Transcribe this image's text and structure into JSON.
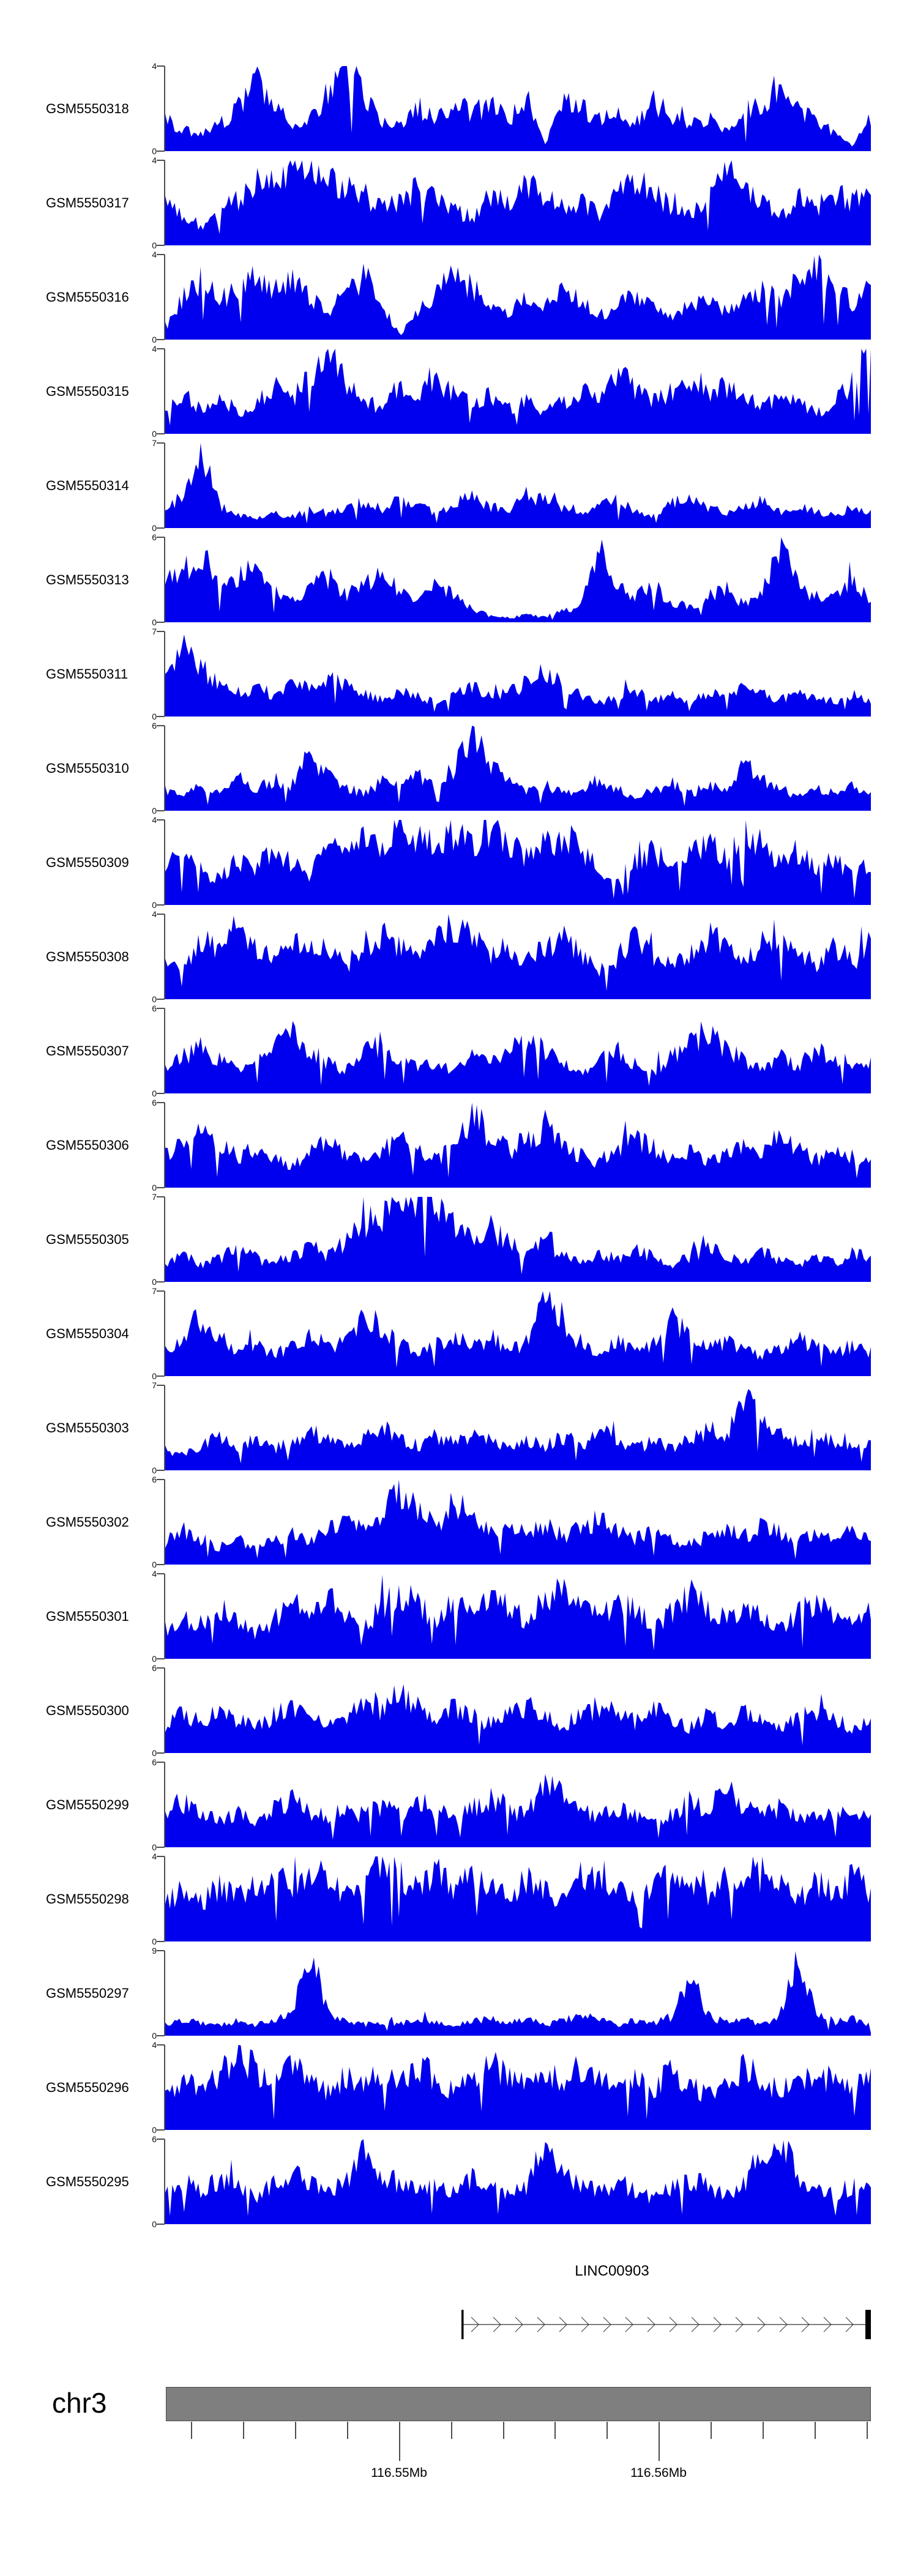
{
  "chart_data": {
    "type": "area",
    "title": "",
    "description": "Genome browser coverage signal tracks over a chr3 region with LINC00903 gene model and genomic coordinate axis",
    "colors": {
      "signal": "#0000EE",
      "ideogram_fill": "#7f7f7f",
      "ideogram_border": "#4a4a4a",
      "axis": "#4d4d4d"
    },
    "y_axis_zero_label": "0",
    "region": {
      "chromosome": "chr3"
    },
    "gene": {
      "label": "LINC00903",
      "strand": "forward"
    },
    "axis": {
      "major_tick_labels": [
        "116.55Mb",
        "116.56Mb"
      ],
      "major_tick_values_mb": [
        116.55,
        116.56
      ],
      "minor_tick_interval_mb": 0.002,
      "legend_position": "none",
      "grid": false
    },
    "tracks": [
      {
        "name": "GSM5550318",
        "ymax": 4,
        "values": [
          1.5,
          1.0,
          0.8,
          1.3,
          2.0,
          3.7,
          2.2,
          1.2,
          1.6,
          2.8,
          4.0,
          2.6,
          1.4,
          1.1,
          2.1,
          1.5,
          2.4,
          1.8,
          2.2,
          1.4,
          2.6,
          0.3,
          2.4,
          2.0,
          1.5,
          1.9,
          1.3,
          2.3,
          1.7,
          1.2,
          1.5,
          1.1,
          1.8,
          2.3,
          3.2,
          2.1,
          1.4,
          0.9,
          0.2,
          1.6
        ]
      },
      {
        "name": "GSM5550317",
        "ymax": 4,
        "values": [
          2.0,
          1.4,
          0.9,
          1.5,
          2.2,
          2.9,
          3.2,
          3.5,
          4.0,
          3.4,
          2.8,
          2.4,
          1.7,
          2.1,
          2.9,
          2.2,
          1.6,
          1.3,
          2.4,
          2.0,
          2.8,
          2.3,
          1.7,
          2.1,
          1.5,
          2.6,
          3.3,
          2.4,
          1.8,
          1.4,
          2.0,
          3.5,
          2.6,
          1.9,
          1.5,
          2.2,
          1.8,
          2.5,
          2.1,
          2.8
        ]
      },
      {
        "name": "GSM5550316",
        "ymax": 4,
        "values": [
          0.5,
          2.0,
          2.8,
          1.8,
          2.4,
          3.1,
          2.2,
          2.8,
          2.0,
          1.2,
          2.4,
          3.0,
          1.6,
          0.2,
          1.4,
          2.2,
          3.0,
          2.4,
          1.6,
          1.2,
          2.0,
          1.5,
          2.3,
          1.8,
          1.2,
          1.6,
          2.1,
          1.4,
          1.0,
          1.6,
          2.2,
          1.3,
          1.8,
          2.4,
          2.0,
          2.8,
          3.4,
          2.4,
          1.7,
          2.6
        ]
      },
      {
        "name": "GSM5550315",
        "ymax": 4,
        "values": [
          1.2,
          2.0,
          1.1,
          1.6,
          1.0,
          1.4,
          2.2,
          1.6,
          2.8,
          4.0,
          2.4,
          1.6,
          1.2,
          2.3,
          1.8,
          2.5,
          2.0,
          1.4,
          1.8,
          1.2,
          1.6,
          1.0,
          1.5,
          2.1,
          1.6,
          2.8,
          2.2,
          1.6,
          2.0,
          2.4,
          1.8,
          2.2,
          1.6,
          1.2,
          1.8,
          1.4,
          1.0,
          1.5,
          2.4,
          4.0
        ]
      },
      {
        "name": "GSM5550314",
        "ymax": 7,
        "values": [
          1.8,
          2.5,
          6.8,
          2.0,
          1.0,
          0.8,
          1.2,
          1.0,
          1.5,
          1.2,
          1.8,
          2.2,
          1.6,
          2.4,
          1.8,
          1.2,
          2.0,
          2.6,
          1.8,
          1.4,
          2.8,
          2.2,
          1.6,
          1.2,
          1.8,
          2.4,
          1.4,
          1.0,
          2.0,
          2.6,
          1.8,
          1.2,
          1.6,
          2.2,
          1.4,
          1.9,
          1.3,
          1.0,
          1.8,
          1.2
        ]
      },
      {
        "name": "GSM5550313",
        "ymax": 6,
        "values": [
          2.8,
          3.5,
          5.0,
          2.4,
          3.0,
          4.2,
          2.2,
          1.6,
          2.4,
          3.2,
          2.0,
          2.8,
          3.4,
          2.2,
          1.4,
          2.6,
          1.8,
          1.0,
          0.4,
          0.3,
          0.5,
          0.4,
          0.8,
          1.2,
          5.5,
          3.0,
          1.8,
          2.6,
          1.5,
          1.0,
          1.8,
          2.4,
          1.2,
          2.0,
          5.8,
          2.6,
          1.4,
          2.2,
          3.0,
          1.6
        ]
      },
      {
        "name": "GSM5550311",
        "ymax": 7,
        "values": [
          3.0,
          6.8,
          4.0,
          2.6,
          2.0,
          2.4,
          1.8,
          2.8,
          2.2,
          3.2,
          2.6,
          1.8,
          1.4,
          2.0,
          1.6,
          1.2,
          1.8,
          2.4,
          1.6,
          2.0,
          2.8,
          4.0,
          2.4,
          1.8,
          1.2,
          1.6,
          2.2,
          1.4,
          1.8,
          1.2,
          2.0,
          1.6,
          2.4,
          1.8,
          1.4,
          2.0,
          1.6,
          1.2,
          1.8,
          1.4
        ]
      },
      {
        "name": "GSM5550310",
        "ymax": 6,
        "values": [
          1.5,
          1.0,
          1.8,
          1.2,
          2.0,
          1.4,
          2.2,
          1.8,
          4.0,
          2.4,
          1.6,
          1.2,
          2.0,
          1.6,
          2.4,
          1.8,
          3.0,
          5.8,
          3.2,
          2.0,
          1.4,
          1.8,
          1.2,
          1.6,
          2.2,
          1.6,
          1.0,
          1.4,
          2.0,
          1.2,
          1.8,
          1.4,
          3.5,
          2.2,
          1.6,
          1.0,
          1.6,
          1.2,
          1.8,
          1.4
        ]
      },
      {
        "name": "GSM5550309",
        "ymax": 4,
        "values": [
          1.8,
          2.4,
          1.6,
          1.2,
          2.2,
          1.8,
          2.6,
          2.0,
          1.4,
          2.8,
          2.2,
          3.0,
          2.4,
          3.8,
          3.2,
          2.6,
          3.4,
          2.8,
          3.8,
          3.0,
          2.2,
          2.8,
          3.4,
          2.4,
          1.8,
          1.2,
          2.0,
          2.6,
          1.8,
          2.4,
          3.0,
          2.2,
          3.6,
          2.8,
          2.0,
          2.6,
          1.8,
          2.2,
          1.4,
          2.0
        ]
      },
      {
        "name": "GSM5550308",
        "ymax": 4,
        "values": [
          2.2,
          1.6,
          2.8,
          2.2,
          3.4,
          2.6,
          1.8,
          2.4,
          3.0,
          2.2,
          1.6,
          2.6,
          3.2,
          2.4,
          1.8,
          2.8,
          3.6,
          2.8,
          2.0,
          2.6,
          1.8,
          2.4,
          3.0,
          2.2,
          1.4,
          2.0,
          2.8,
          2.0,
          1.6,
          2.2,
          3.0,
          2.4,
          1.8,
          2.6,
          3.2,
          2.2,
          1.6,
          2.4,
          1.8,
          2.6
        ]
      },
      {
        "name": "GSM5550307",
        "ymax": 6,
        "values": [
          1.8,
          2.6,
          3.4,
          2.4,
          1.6,
          2.2,
          3.0,
          4.4,
          3.2,
          2.2,
          1.6,
          2.8,
          3.6,
          2.6,
          1.8,
          2.4,
          1.6,
          2.8,
          2.0,
          3.2,
          4.2,
          3.0,
          2.0,
          1.4,
          2.2,
          3.0,
          2.2,
          1.6,
          2.6,
          3.4,
          4.6,
          3.2,
          2.4,
          1.8,
          2.6,
          2.0,
          3.0,
          2.2,
          1.6,
          2.4
        ]
      },
      {
        "name": "GSM5550306",
        "ymax": 6,
        "values": [
          2.4,
          3.2,
          4.0,
          3.0,
          2.2,
          2.8,
          2.0,
          1.6,
          2.4,
          3.2,
          2.4,
          1.8,
          2.6,
          3.4,
          2.6,
          2.0,
          3.0,
          5.2,
          3.6,
          2.6,
          3.4,
          4.4,
          3.2,
          2.2,
          1.8,
          2.8,
          3.6,
          2.8,
          2.0,
          2.6,
          1.8,
          2.4,
          3.2,
          2.4,
          3.8,
          2.8,
          2.0,
          2.8,
          2.2,
          1.6
        ]
      },
      {
        "name": "GSM5550305",
        "ymax": 7,
        "values": [
          1.6,
          2.2,
          1.4,
          2.0,
          2.8,
          2.0,
          1.4,
          2.2,
          3.0,
          2.2,
          3.4,
          4.6,
          5.6,
          6.5,
          5.8,
          6.2,
          4.8,
          3.6,
          4.4,
          3.2,
          2.4,
          3.2,
          2.2,
          1.6,
          2.4,
          1.8,
          2.8,
          2.0,
          1.4,
          2.0,
          2.8,
          2.0,
          1.6,
          2.4,
          1.8,
          1.2,
          2.0,
          1.6,
          2.4,
          1.8
        ]
      },
      {
        "name": "GSM5550304",
        "ymax": 7,
        "values": [
          2.0,
          3.2,
          5.0,
          3.0,
          2.0,
          2.6,
          1.8,
          2.4,
          3.4,
          2.4,
          3.0,
          5.5,
          3.8,
          2.6,
          1.8,
          2.6,
          3.4,
          2.4,
          3.2,
          2.2,
          2.8,
          6.5,
          4.0,
          2.8,
          2.0,
          2.8,
          2.0,
          2.8,
          5.0,
          3.2,
          2.2,
          3.0,
          2.2,
          1.6,
          2.4,
          3.2,
          2.4,
          1.8,
          2.6,
          2.0
        ]
      },
      {
        "name": "GSM5550303",
        "ymax": 7,
        "values": [
          1.8,
          1.2,
          2.0,
          2.8,
          2.0,
          2.6,
          1.8,
          2.4,
          3.2,
          2.4,
          1.8,
          2.6,
          3.4,
          2.6,
          2.0,
          2.8,
          2.2,
          3.0,
          2.4,
          1.8,
          2.6,
          2.0,
          2.8,
          2.2,
          3.0,
          2.4,
          1.8,
          2.4,
          1.8,
          2.6,
          3.4,
          2.6,
          6.5,
          4.0,
          2.8,
          2.2,
          3.0,
          2.4,
          1.8,
          2.6
        ]
      },
      {
        "name": "GSM5550302",
        "ymax": 6,
        "values": [
          1.6,
          2.4,
          1.8,
          1.2,
          1.8,
          1.2,
          1.6,
          2.2,
          1.6,
          2.4,
          3.2,
          2.4,
          3.6,
          5.0,
          3.8,
          2.8,
          4.4,
          3.4,
          2.4,
          3.0,
          2.2,
          2.8,
          2.0,
          2.6,
          3.2,
          2.4,
          1.8,
          2.4,
          1.8,
          1.4,
          2.0,
          2.6,
          2.0,
          2.8,
          2.2,
          1.6,
          2.2,
          1.8,
          2.4,
          1.8
        ]
      },
      {
        "name": "GSM5550301",
        "ymax": 4,
        "values": [
          1.4,
          2.0,
          1.5,
          2.4,
          1.8,
          1.2,
          1.8,
          2.6,
          2.0,
          2.8,
          2.2,
          1.6,
          2.4,
          3.2,
          2.6,
          1.8,
          2.6,
          2.0,
          3.0,
          2.4,
          1.8,
          2.8,
          3.4,
          2.6,
          2.0,
          2.8,
          2.2,
          1.6,
          2.2,
          3.0,
          2.4,
          1.8,
          2.6,
          2.0,
          1.4,
          2.2,
          2.8,
          2.0,
          1.6,
          2.4
        ]
      },
      {
        "name": "GSM5550300",
        "ymax": 6,
        "values": [
          2.0,
          2.8,
          2.2,
          3.0,
          2.4,
          1.8,
          2.6,
          3.4,
          2.8,
          2.0,
          2.8,
          3.6,
          3.0,
          4.2,
          3.2,
          2.4,
          3.2,
          2.6,
          2.0,
          2.8,
          3.4,
          2.6,
          2.0,
          2.6,
          3.4,
          2.8,
          2.2,
          3.0,
          2.4,
          1.8,
          2.6,
          2.0,
          2.8,
          2.2,
          1.6,
          2.4,
          3.0,
          2.4,
          1.8,
          2.4
        ]
      },
      {
        "name": "GSM5550299",
        "ymax": 6,
        "values": [
          2.6,
          3.2,
          2.4,
          1.8,
          2.6,
          2.0,
          2.8,
          3.4,
          2.6,
          2.0,
          2.8,
          2.2,
          3.0,
          2.4,
          3.2,
          2.6,
          2.0,
          2.8,
          3.6,
          2.8,
          2.2,
          5.0,
          3.4,
          2.6,
          2.0,
          2.8,
          2.2,
          1.6,
          2.4,
          3.2,
          2.6,
          4.2,
          3.0,
          2.2,
          2.8,
          2.0,
          2.6,
          2.0,
          2.8,
          2.2
        ]
      },
      {
        "name": "GSM5550298",
        "ymax": 4,
        "values": [
          1.8,
          2.4,
          1.8,
          2.6,
          2.0,
          2.8,
          3.2,
          2.6,
          3.4,
          2.8,
          2.2,
          3.0,
          3.6,
          3.0,
          2.4,
          3.2,
          2.6,
          3.4,
          2.8,
          2.2,
          3.0,
          2.4,
          1.8,
          2.6,
          3.2,
          2.6,
          2.0,
          2.8,
          3.4,
          2.8,
          2.2,
          3.0,
          2.4,
          3.2,
          2.6,
          2.0,
          2.8,
          2.2,
          3.0,
          2.4
        ]
      },
      {
        "name": "GSM5550297",
        "ymax": 9,
        "values": [
          1.2,
          1.8,
          1.4,
          1.0,
          1.6,
          1.2,
          1.8,
          2.4,
          8.8,
          2.6,
          1.4,
          1.2,
          1.6,
          1.2,
          1.8,
          1.4,
          1.0,
          1.6,
          2.0,
          1.4,
          1.8,
          1.2,
          1.6,
          2.2,
          1.6,
          1.2,
          1.8,
          1.4,
          2.0,
          7.0,
          2.2,
          1.4,
          1.8,
          1.2,
          2.4,
          8.6,
          2.6,
          1.4,
          1.8,
          1.2
        ]
      },
      {
        "name": "GSM5550296",
        "ymax": 4,
        "values": [
          1.8,
          2.4,
          1.8,
          2.6,
          3.8,
          2.8,
          2.2,
          3.0,
          2.4,
          1.8,
          2.6,
          2.0,
          2.8,
          2.2,
          3.0,
          2.4,
          1.8,
          2.6,
          3.2,
          2.6,
          2.0,
          2.8,
          2.2,
          3.0,
          2.4,
          1.8,
          2.6,
          2.0,
          2.8,
          2.2,
          1.6,
          2.4,
          3.0,
          2.4,
          1.8,
          2.6,
          2.0,
          2.8,
          2.2,
          2.6
        ]
      },
      {
        "name": "GSM5550295",
        "ymax": 6,
        "values": [
          2.2,
          3.0,
          2.4,
          3.2,
          2.6,
          2.0,
          2.8,
          3.6,
          2.8,
          2.2,
          3.0,
          5.4,
          3.6,
          2.8,
          2.2,
          3.0,
          2.4,
          3.2,
          2.6,
          2.0,
          2.8,
          5.6,
          3.8,
          2.8,
          2.2,
          3.0,
          2.4,
          1.8,
          2.6,
          3.2,
          2.6,
          2.0,
          2.8,
          5.2,
          5.6,
          3.4,
          2.6,
          2.0,
          2.8,
          2.2
        ]
      }
    ]
  }
}
